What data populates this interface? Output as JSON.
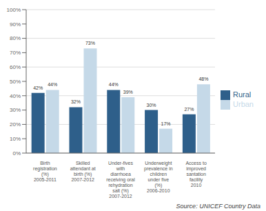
{
  "chart_data": {
    "type": "bar",
    "categories": [
      "Birth\nregistration\n(%)\n2005-2011",
      "Skilled\nattendant at\nbirth (%)\n2007-2012",
      "Under-fives\nwith\ndiarrhoea\nreceiving oral\nrehydration\nsalt (%)\n2007-2012",
      "Underweight\nprevalence in\nchildren\nunder five\n(%)\n2006-2010",
      "Access to\nimproved\nsantation\nfacility\n2010"
    ],
    "series": [
      {
        "name": "Rural",
        "color": "#2E5F8A",
        "values": [
          42,
          32,
          44,
          30,
          27
        ],
        "value_labels": [
          "42%",
          "32%",
          "44%",
          "30%",
          "27%"
        ]
      },
      {
        "name": "Urban",
        "color": "#C5D9E8",
        "values": [
          44,
          73,
          39,
          17,
          48
        ],
        "value_labels": [
          "44%",
          "73%",
          "39%",
          "17%",
          "48%"
        ]
      }
    ],
    "ylim": [
      0,
      100
    ],
    "yticks": [
      {
        "value": 0,
        "label": "0%"
      },
      {
        "value": 10,
        "label": "10%"
      },
      {
        "value": 20,
        "label": "20%"
      },
      {
        "value": 30,
        "label": "30%"
      },
      {
        "value": 40,
        "label": "40%"
      },
      {
        "value": 50,
        "label": "50%"
      },
      {
        "value": 60,
        "label": "60%"
      },
      {
        "value": 70,
        "label": "70%"
      },
      {
        "value": 80,
        "label": "80%"
      },
      {
        "value": 90,
        "label": "90%"
      },
      {
        "value": 100,
        "label": "100%"
      }
    ],
    "grid": true,
    "legend": "right",
    "data_labels": true,
    "annotations": [
      "Source: UNICEF Country Data"
    ]
  }
}
